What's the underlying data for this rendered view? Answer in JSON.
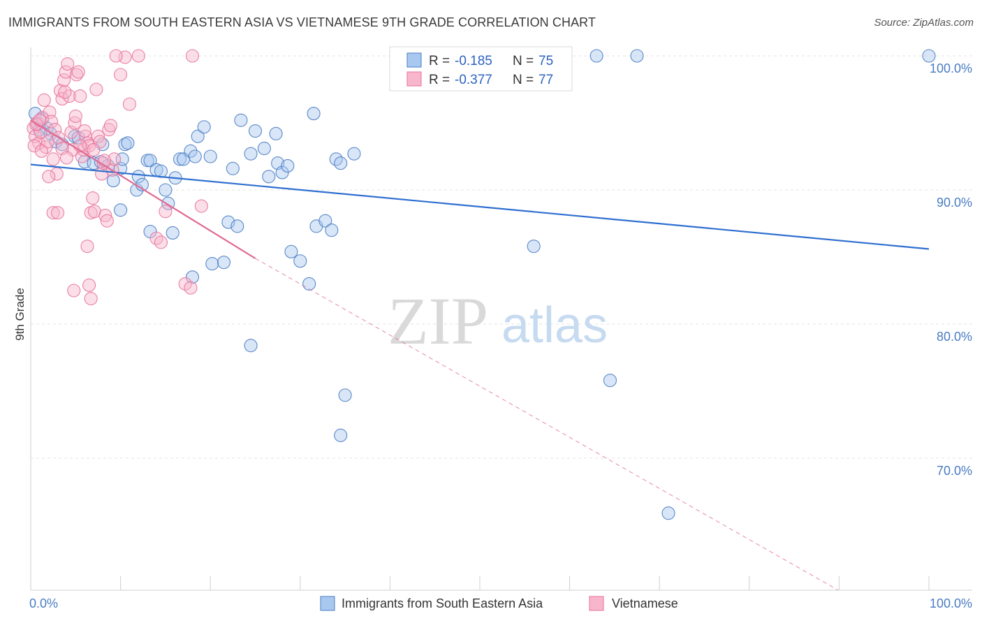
{
  "title": "IMMIGRANTS FROM SOUTH EASTERN ASIA VS VIETNAMESE 9TH GRADE CORRELATION CHART",
  "source": "Source: ZipAtlas.com",
  "watermark": {
    "zip": "ZIP",
    "atlas": "atlas"
  },
  "colors": {
    "blue": "#4a7cc2",
    "blue_fill": "#a8c8ef",
    "blue_line": "#2f6fd0",
    "pink": "#e8739a",
    "pink_fill": "#f7b6cb",
    "pink_line": "#e06a93",
    "grid": "#e3e3e3"
  },
  "legend": {
    "rows": [
      {
        "r_label": "R =",
        "r_value": "-0.185",
        "n_label": "N =",
        "n_value": "75"
      },
      {
        "r_label": "R =",
        "r_value": "-0.377",
        "n_label": "N =",
        "n_value": "77"
      }
    ]
  },
  "bottom_legend": [
    "Immigrants from South Eastern Asia",
    "Vietnamese"
  ],
  "chart_data": {
    "type": "scatter",
    "title": "IMMIGRANTS FROM SOUTH EASTERN ASIA VS VIETNAMESE 9TH GRADE CORRELATION CHART",
    "xlabel": "",
    "ylabel": "9th Grade",
    "x_tick_labels": [
      "0.0%",
      "100.0%"
    ],
    "y_tick_labels": [
      "100.0%",
      "90.0%",
      "80.0%",
      "70.0%"
    ],
    "y_ticks": [
      100,
      90,
      80,
      70
    ],
    "xlim": [
      0,
      100
    ],
    "ylim": [
      59.5,
      101.0
    ],
    "grid": true,
    "legend_position": "top-center",
    "series": [
      {
        "name": "Immigrants from South Eastern Asia",
        "color": "#4a7cc2",
        "R": -0.185,
        "N": 75,
        "trend": {
          "x": [
            0,
            100
          ],
          "y": [
            91.9,
            85.6
          ]
        },
        "points": [
          [
            0.5,
            95.7
          ],
          [
            0.8,
            94.9
          ],
          [
            1.0,
            94.5
          ],
          [
            1.3,
            95.3
          ],
          [
            1.8,
            94.6
          ],
          [
            2.2,
            94.2
          ],
          [
            2.8,
            93.6
          ],
          [
            3.5,
            93.4
          ],
          [
            4.9,
            94.0
          ],
          [
            5.3,
            93.9
          ],
          [
            6.0,
            92.1
          ],
          [
            7.0,
            92.0
          ],
          [
            7.8,
            92.1
          ],
          [
            8.6,
            91.8
          ],
          [
            9.2,
            90.7
          ],
          [
            10.0,
            91.6
          ],
          [
            8.0,
            93.4
          ],
          [
            10.5,
            93.4
          ],
          [
            10.2,
            92.3
          ],
          [
            10.8,
            93.5
          ],
          [
            12.0,
            91.0
          ],
          [
            11.8,
            90.0
          ],
          [
            12.4,
            90.4
          ],
          [
            13.0,
            92.2
          ],
          [
            13.3,
            92.2
          ],
          [
            14.0,
            91.5
          ],
          [
            14.5,
            91.4
          ],
          [
            15.0,
            90.0
          ],
          [
            15.3,
            89.0
          ],
          [
            16.1,
            90.9
          ],
          [
            16.6,
            92.3
          ],
          [
            17.0,
            92.3
          ],
          [
            17.8,
            92.9
          ],
          [
            18.3,
            92.5
          ],
          [
            18.6,
            94.0
          ],
          [
            19.3,
            94.7
          ],
          [
            20.0,
            92.5
          ],
          [
            13.3,
            86.9
          ],
          [
            15.8,
            86.8
          ],
          [
            18.0,
            83.5
          ],
          [
            20.2,
            84.5
          ],
          [
            21.5,
            84.6
          ],
          [
            22.0,
            87.6
          ],
          [
            22.5,
            91.6
          ],
          [
            23.4,
            95.2
          ],
          [
            24.5,
            92.7
          ],
          [
            25.0,
            94.4
          ],
          [
            26.0,
            93.1
          ],
          [
            26.5,
            91.0
          ],
          [
            27.3,
            94.2
          ],
          [
            27.5,
            92.0
          ],
          [
            28.0,
            91.3
          ],
          [
            28.6,
            91.8
          ],
          [
            29.0,
            85.4
          ],
          [
            30.0,
            84.7
          ],
          [
            31.0,
            83.0
          ],
          [
            31.5,
            95.7
          ],
          [
            31.8,
            87.3
          ],
          [
            32.8,
            87.7
          ],
          [
            33.5,
            87.0
          ],
          [
            34.0,
            92.3
          ],
          [
            34.5,
            92.0
          ],
          [
            36.0,
            92.7
          ],
          [
            24.5,
            78.4
          ],
          [
            35.0,
            74.7
          ],
          [
            34.5,
            71.7
          ],
          [
            56.0,
            85.8
          ],
          [
            64.5,
            75.8
          ],
          [
            71.0,
            65.9
          ],
          [
            63.0,
            100.0
          ],
          [
            67.5,
            100.0
          ],
          [
            100.0,
            100.0
          ],
          [
            45.5,
            100.0
          ],
          [
            23.0,
            87.3
          ],
          [
            10.0,
            88.5
          ]
        ]
      },
      {
        "name": "Vietnamese",
        "color": "#e8739a",
        "R": -0.377,
        "N": 77,
        "trend": {
          "x": [
            0,
            25
          ],
          "y": [
            95.2,
            84.9
          ]
        },
        "trend_dashed": {
          "x": [
            25,
            100
          ],
          "y": [
            84.9,
            54.0
          ]
        },
        "points": [
          [
            0.3,
            94.6
          ],
          [
            0.5,
            94.0
          ],
          [
            0.7,
            95.0
          ],
          [
            0.9,
            93.5
          ],
          [
            1.1,
            94.3
          ],
          [
            1.3,
            95.4
          ],
          [
            1.5,
            96.7
          ],
          [
            1.7,
            93.2
          ],
          [
            1.9,
            93.6
          ],
          [
            2.1,
            95.8
          ],
          [
            2.3,
            95.1
          ],
          [
            2.5,
            92.3
          ],
          [
            2.7,
            94.5
          ],
          [
            2.9,
            91.2
          ],
          [
            3.1,
            93.9
          ],
          [
            3.3,
            97.4
          ],
          [
            3.5,
            96.8
          ],
          [
            3.7,
            98.2
          ],
          [
            3.9,
            98.8
          ],
          [
            4.1,
            99.4
          ],
          [
            4.3,
            97.0
          ],
          [
            4.5,
            94.3
          ],
          [
            4.7,
            93.0
          ],
          [
            4.9,
            95.0
          ],
          [
            5.1,
            98.6
          ],
          [
            5.3,
            98.8
          ],
          [
            5.5,
            97.0
          ],
          [
            5.7,
            92.5
          ],
          [
            5.9,
            93.0
          ],
          [
            6.1,
            94.0
          ],
          [
            6.3,
            93.5
          ],
          [
            6.5,
            93.3
          ],
          [
            6.7,
            88.3
          ],
          [
            6.9,
            89.4
          ],
          [
            7.1,
            88.4
          ],
          [
            7.3,
            97.5
          ],
          [
            7.5,
            94.0
          ],
          [
            7.7,
            93.6
          ],
          [
            7.9,
            91.2
          ],
          [
            8.1,
            92.0
          ],
          [
            8.3,
            88.1
          ],
          [
            8.5,
            87.7
          ],
          [
            8.7,
            94.5
          ],
          [
            8.9,
            94.8
          ],
          [
            9.1,
            91.5
          ],
          [
            9.3,
            92.3
          ],
          [
            10.0,
            98.6
          ],
          [
            10.5,
            99.9
          ],
          [
            11.0,
            96.4
          ],
          [
            12.0,
            100.0
          ],
          [
            14.0,
            86.4
          ],
          [
            14.5,
            86.1
          ],
          [
            15.0,
            88.4
          ],
          [
            17.2,
            83.0
          ],
          [
            17.8,
            82.7
          ],
          [
            19.0,
            88.8
          ],
          [
            4.8,
            82.5
          ],
          [
            6.5,
            82.9
          ],
          [
            6.7,
            81.9
          ],
          [
            6.3,
            85.8
          ],
          [
            2.5,
            88.3
          ],
          [
            3.0,
            88.3
          ],
          [
            5.0,
            95.5
          ],
          [
            5.5,
            93.3
          ],
          [
            0.4,
            93.3
          ],
          [
            0.6,
            94.9
          ],
          [
            1.0,
            95.2
          ],
          [
            1.2,
            92.9
          ],
          [
            2.0,
            91.0
          ],
          [
            3.5,
            93.1
          ],
          [
            4.0,
            92.4
          ],
          [
            6.0,
            94.4
          ],
          [
            7.0,
            93.0
          ],
          [
            9.5,
            100.0
          ],
          [
            8.2,
            92.2
          ],
          [
            18.0,
            100.0
          ],
          [
            3.8,
            97.3
          ]
        ]
      }
    ]
  }
}
